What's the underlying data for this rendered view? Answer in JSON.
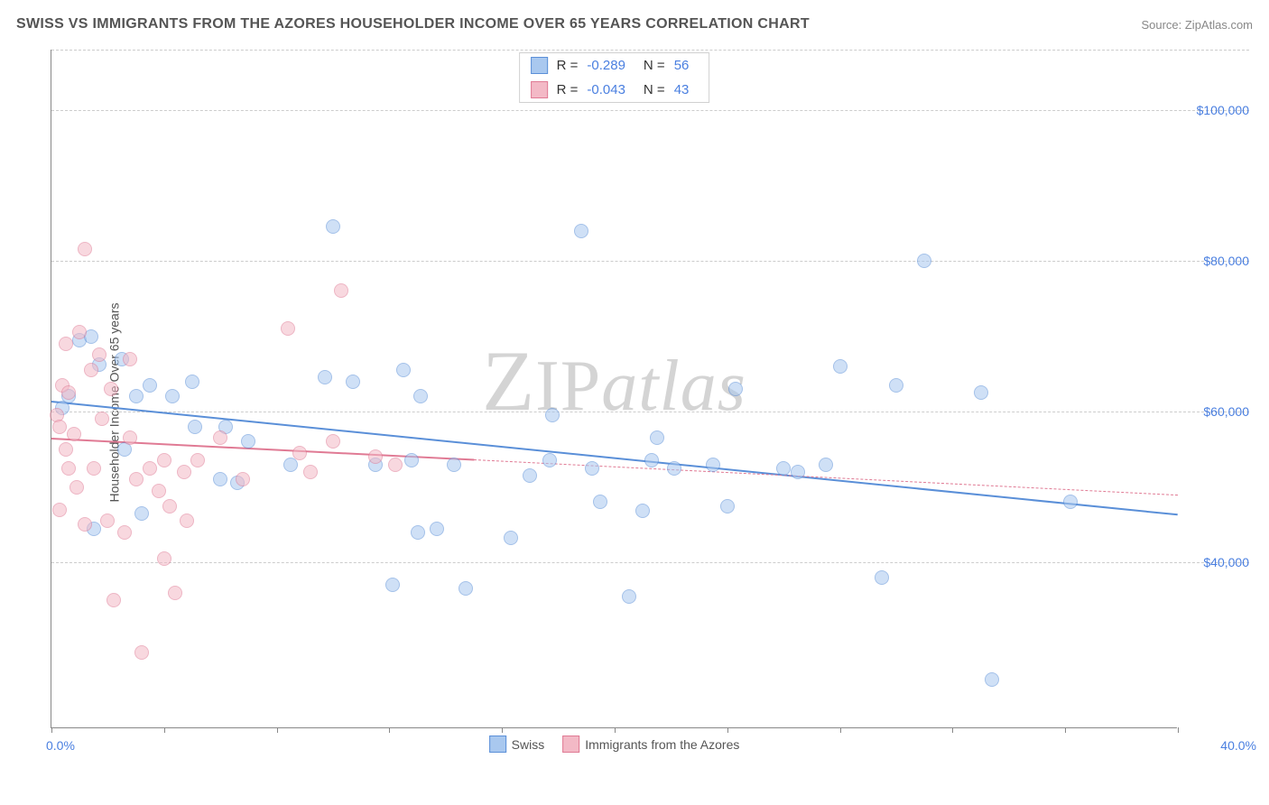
{
  "header": {
    "title": "SWISS VS IMMIGRANTS FROM THE AZORES HOUSEHOLDER INCOME OVER 65 YEARS CORRELATION CHART",
    "source": "Source: ZipAtlas.com"
  },
  "watermark": {
    "z": "Z",
    "ip": "IP",
    "atlas": "atlas"
  },
  "chart": {
    "type": "scatter",
    "y_axis_label": "Householder Income Over 65 years",
    "xlim": [
      0,
      40
    ],
    "ylim": [
      18000,
      108000
    ],
    "x_tick_positions": [
      0,
      4,
      8,
      12,
      16,
      20,
      24,
      28,
      32,
      36,
      40
    ],
    "x_axis_left_label": "0.0%",
    "x_axis_right_label": "40.0%",
    "y_gridlines": [
      40000,
      60000,
      80000,
      100000
    ],
    "y_tick_labels": [
      "$40,000",
      "$60,000",
      "$80,000",
      "$100,000"
    ],
    "grid_color": "#cccccc",
    "axis_color": "#888888",
    "tick_label_color": "#4a7fe0",
    "background_color": "#ffffff",
    "point_radius": 8,
    "point_opacity": 0.55,
    "series": [
      {
        "name": "Swiss",
        "fill": "#a9c8ef",
        "stroke": "#5a8fd8",
        "R": "-0.289",
        "N": "56",
        "trend": {
          "x1": 0,
          "y1": 61500,
          "x2": 40,
          "y2": 46500,
          "solid_to_x": 40
        },
        "points": [
          [
            0.4,
            60500
          ],
          [
            0.6,
            62000
          ],
          [
            1.0,
            69500
          ],
          [
            1.4,
            70000
          ],
          [
            1.7,
            66200
          ],
          [
            2.5,
            67000
          ],
          [
            2.6,
            55000
          ],
          [
            3.0,
            62000
          ],
          [
            3.5,
            63500
          ],
          [
            4.3,
            62000
          ],
          [
            5.0,
            64000
          ],
          [
            5.1,
            58000
          ],
          [
            6.0,
            51000
          ],
          [
            6.2,
            58000
          ],
          [
            7.0,
            56000
          ],
          [
            8.5,
            53000
          ],
          [
            9.7,
            64500
          ],
          [
            10.0,
            84500
          ],
          [
            10.7,
            64000
          ],
          [
            11.5,
            53000
          ],
          [
            12.1,
            37000
          ],
          [
            12.5,
            65500
          ],
          [
            12.8,
            53500
          ],
          [
            13.0,
            44000
          ],
          [
            13.1,
            62000
          ],
          [
            13.7,
            44500
          ],
          [
            14.3,
            53000
          ],
          [
            14.7,
            36500
          ],
          [
            16.3,
            43200
          ],
          [
            17.0,
            51500
          ],
          [
            17.7,
            53500
          ],
          [
            17.8,
            59500
          ],
          [
            18.8,
            84000
          ],
          [
            19.2,
            52500
          ],
          [
            19.5,
            48000
          ],
          [
            20.5,
            35500
          ],
          [
            21.0,
            46800
          ],
          [
            21.3,
            53500
          ],
          [
            21.5,
            56500
          ],
          [
            22.1,
            52500
          ],
          [
            23.5,
            53000
          ],
          [
            24.0,
            47500
          ],
          [
            24.3,
            63000
          ],
          [
            26.0,
            52500
          ],
          [
            26.5,
            52000
          ],
          [
            27.5,
            53000
          ],
          [
            28.0,
            66000
          ],
          [
            29.5,
            38000
          ],
          [
            31.0,
            80000
          ],
          [
            30.0,
            63500
          ],
          [
            33.0,
            62500
          ],
          [
            33.4,
            24500
          ],
          [
            36.2,
            48000
          ],
          [
            3.2,
            46500
          ],
          [
            6.6,
            50500
          ],
          [
            1.5,
            44500
          ]
        ]
      },
      {
        "name": "Immigrants from the Azores",
        "fill": "#f3b9c6",
        "stroke": "#e07a94",
        "R": "-0.043",
        "N": "43",
        "trend": {
          "x1": 0,
          "y1": 56500,
          "x2": 40,
          "y2": 49000,
          "solid_to_x": 15
        },
        "points": [
          [
            0.2,
            59500
          ],
          [
            0.3,
            58000
          ],
          [
            0.3,
            47000
          ],
          [
            0.4,
            63500
          ],
          [
            0.5,
            69000
          ],
          [
            0.5,
            55000
          ],
          [
            0.6,
            52500
          ],
          [
            0.6,
            62500
          ],
          [
            0.8,
            57000
          ],
          [
            0.9,
            50000
          ],
          [
            1.0,
            70500
          ],
          [
            1.2,
            45000
          ],
          [
            1.2,
            81500
          ],
          [
            1.4,
            65500
          ],
          [
            1.5,
            52500
          ],
          [
            1.7,
            67500
          ],
          [
            1.8,
            59000
          ],
          [
            2.0,
            45500
          ],
          [
            2.1,
            63000
          ],
          [
            2.2,
            35000
          ],
          [
            2.6,
            44000
          ],
          [
            2.8,
            56500
          ],
          [
            2.8,
            67000
          ],
          [
            3.0,
            51000
          ],
          [
            3.2,
            28000
          ],
          [
            3.5,
            52500
          ],
          [
            3.8,
            49500
          ],
          [
            4.0,
            40500
          ],
          [
            4.0,
            53500
          ],
          [
            4.2,
            47500
          ],
          [
            4.4,
            36000
          ],
          [
            4.7,
            52000
          ],
          [
            4.8,
            45500
          ],
          [
            5.2,
            53500
          ],
          [
            6.0,
            56500
          ],
          [
            6.8,
            51000
          ],
          [
            8.4,
            71000
          ],
          [
            8.8,
            54500
          ],
          [
            9.2,
            52000
          ],
          [
            10.0,
            56000
          ],
          [
            10.3,
            76000
          ],
          [
            11.5,
            54000
          ],
          [
            12.2,
            53000
          ]
        ]
      }
    ]
  },
  "legend_top": {
    "r_label": "R =",
    "n_label": "N ="
  },
  "legend_bottom": {
    "items": [
      "Swiss",
      "Immigrants from the Azores"
    ]
  }
}
